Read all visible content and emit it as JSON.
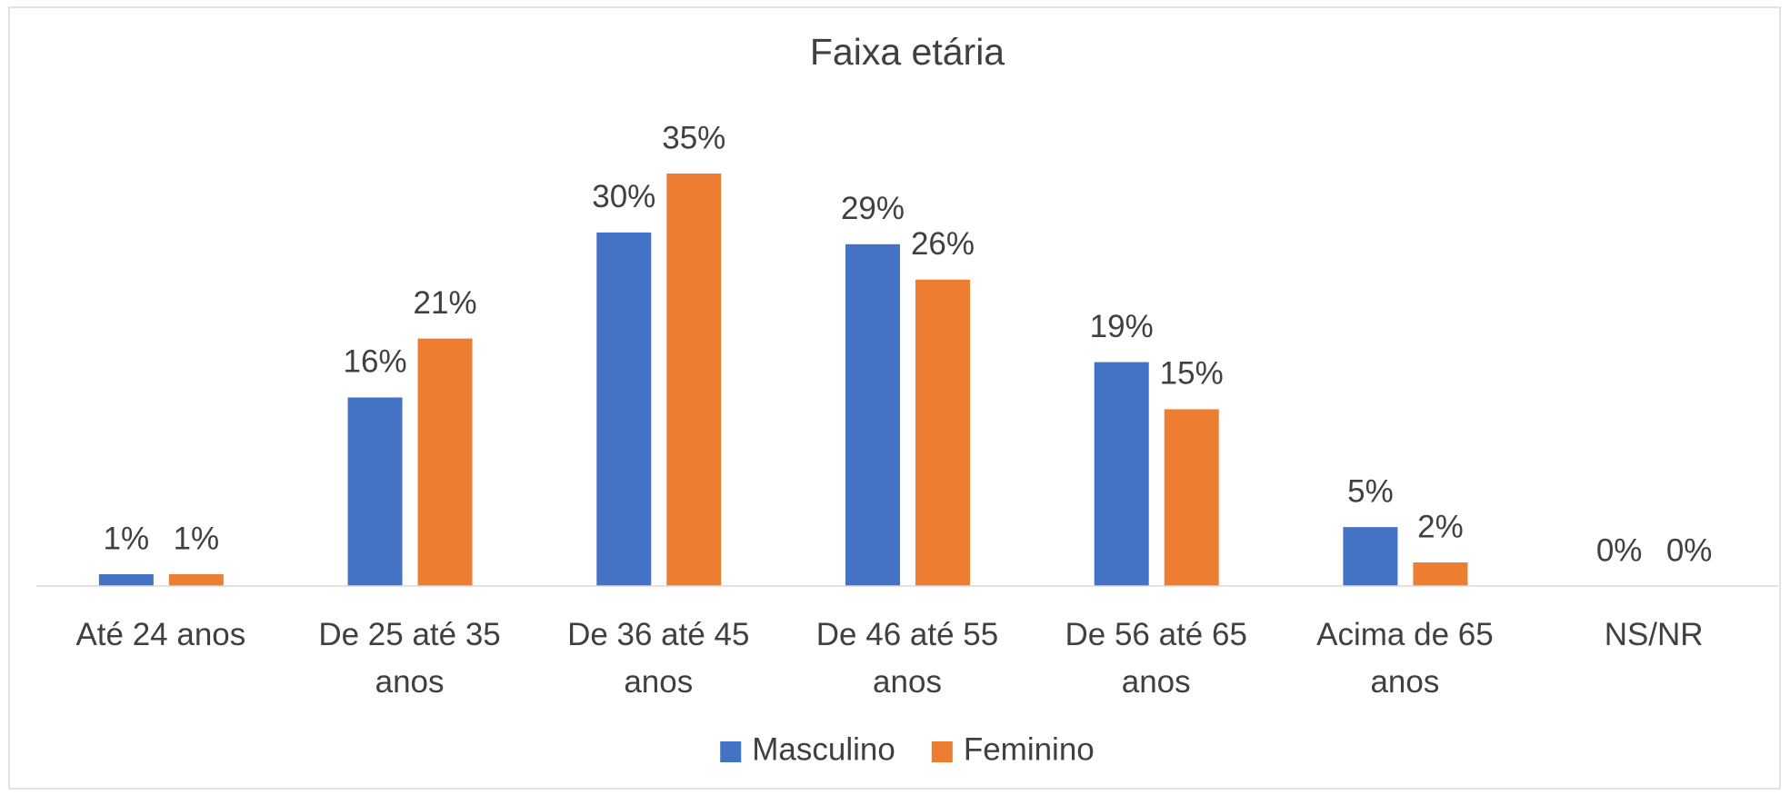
{
  "chart_data": {
    "type": "bar",
    "title": "Faixa etária",
    "categories": [
      "Até 24 anos",
      "De 25 até 35 anos",
      "De 36 até 45 anos",
      "De 46 até 55 anos",
      "De 56 até 65 anos",
      "Acima de 65 anos",
      "NS/NR"
    ],
    "series": [
      {
        "name": "Masculino",
        "color": "#4472c4",
        "values": [
          1,
          16,
          30,
          29,
          19,
          5,
          0
        ],
        "value_labels": [
          "1%",
          "16%",
          "30%",
          "29%",
          "19%",
          "5%",
          "0%"
        ]
      },
      {
        "name": "Feminino",
        "color": "#ed7d31",
        "values": [
          1,
          21,
          35,
          26,
          15,
          2,
          0
        ],
        "value_labels": [
          "1%",
          "21%",
          "35%",
          "26%",
          "15%",
          "2%",
          "0%"
        ]
      }
    ],
    "legend": "bottom"
  }
}
